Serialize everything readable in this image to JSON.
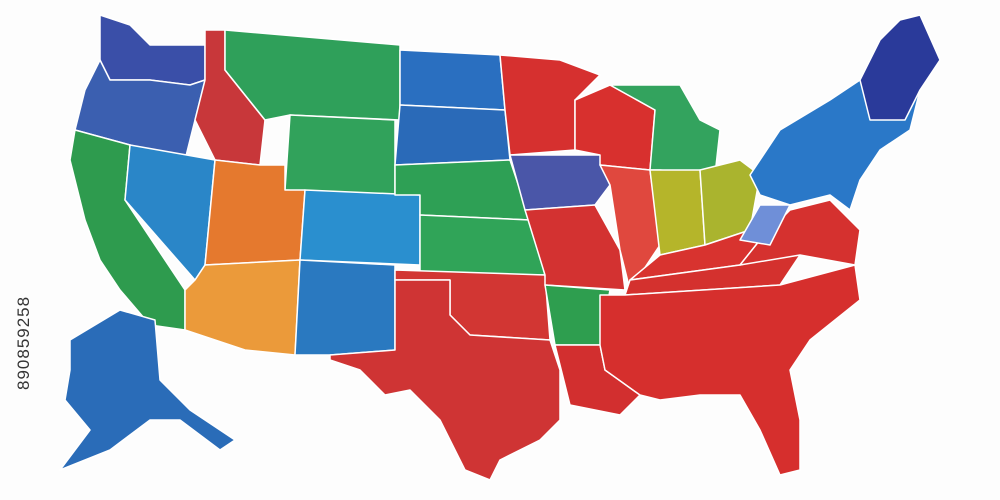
{
  "watermark": {
    "id": "890859258"
  }
}
